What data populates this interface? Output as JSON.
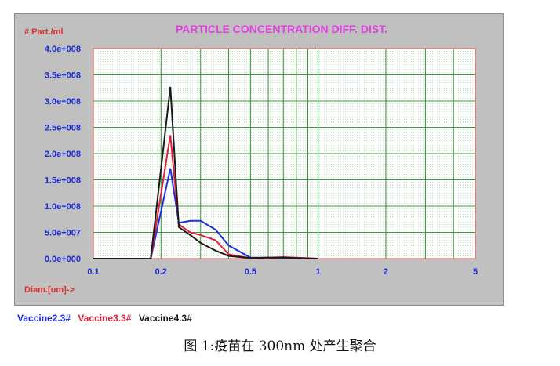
{
  "chart_data": {
    "type": "line",
    "title": "PARTICLE CONCENTRATION DIFF. DIST.",
    "ylabel": "# Part./ml",
    "xlabel": "Diam.[um]->",
    "x_scale": "log",
    "xlim": [
      0.1,
      5
    ],
    "ylim": [
      0,
      400000000.0
    ],
    "x_ticks": [
      "0.1",
      "0.2",
      "0.5",
      "1",
      "2",
      "5"
    ],
    "y_ticks": [
      "4.0e+008",
      "3.5e+008",
      "3.0e+008",
      "2.5e+008",
      "2.0e+008",
      "1.5e+008",
      "1.0e+008",
      "5.0e+007",
      "0.0e+000"
    ],
    "grid": true,
    "legend_position": "bottom-left, outside",
    "x": [
      0.1,
      0.18,
      0.22,
      0.24,
      0.27,
      0.3,
      0.35,
      0.4,
      0.5,
      0.6,
      0.7,
      0.8,
      0.9,
      1.0
    ],
    "series": [
      {
        "name": "Vaccine2.3#",
        "color": "#1f2fe0",
        "values": [
          0,
          0,
          172000000.0,
          68000000.0,
          72000000.0,
          72000000.0,
          55000000.0,
          25000000.0,
          2000000.0,
          2000000.0,
          1000000.0,
          1000000.0,
          0,
          0
        ]
      },
      {
        "name": "Vaccine3.3#",
        "color": "#e0203c",
        "values": [
          0,
          0,
          235000000.0,
          65000000.0,
          50000000.0,
          45000000.0,
          35000000.0,
          8000000.0,
          1000000.0,
          2000000.0,
          3000000.0,
          2000000.0,
          1000000.0,
          0
        ]
      },
      {
        "name": "Vaccine4.3#",
        "color": "#1a1a1a",
        "values": [
          0,
          0,
          327000000.0,
          60000000.0,
          45000000.0,
          30000000.0,
          15000000.0,
          5000000.0,
          1000000.0,
          2000000.0,
          2000000.0,
          1000000.0,
          0,
          0
        ]
      }
    ]
  },
  "legend": {
    "items": [
      {
        "label": "Vaccine2.3#",
        "color": "#1f2fe0"
      },
      {
        "label": "Vaccine3.3#",
        "color": "#e0203c"
      },
      {
        "label": "Vaccine4.3#",
        "color": "#1a1a1a"
      }
    ]
  },
  "caption": "图 1:疫苗在 300nm 处产生聚合"
}
